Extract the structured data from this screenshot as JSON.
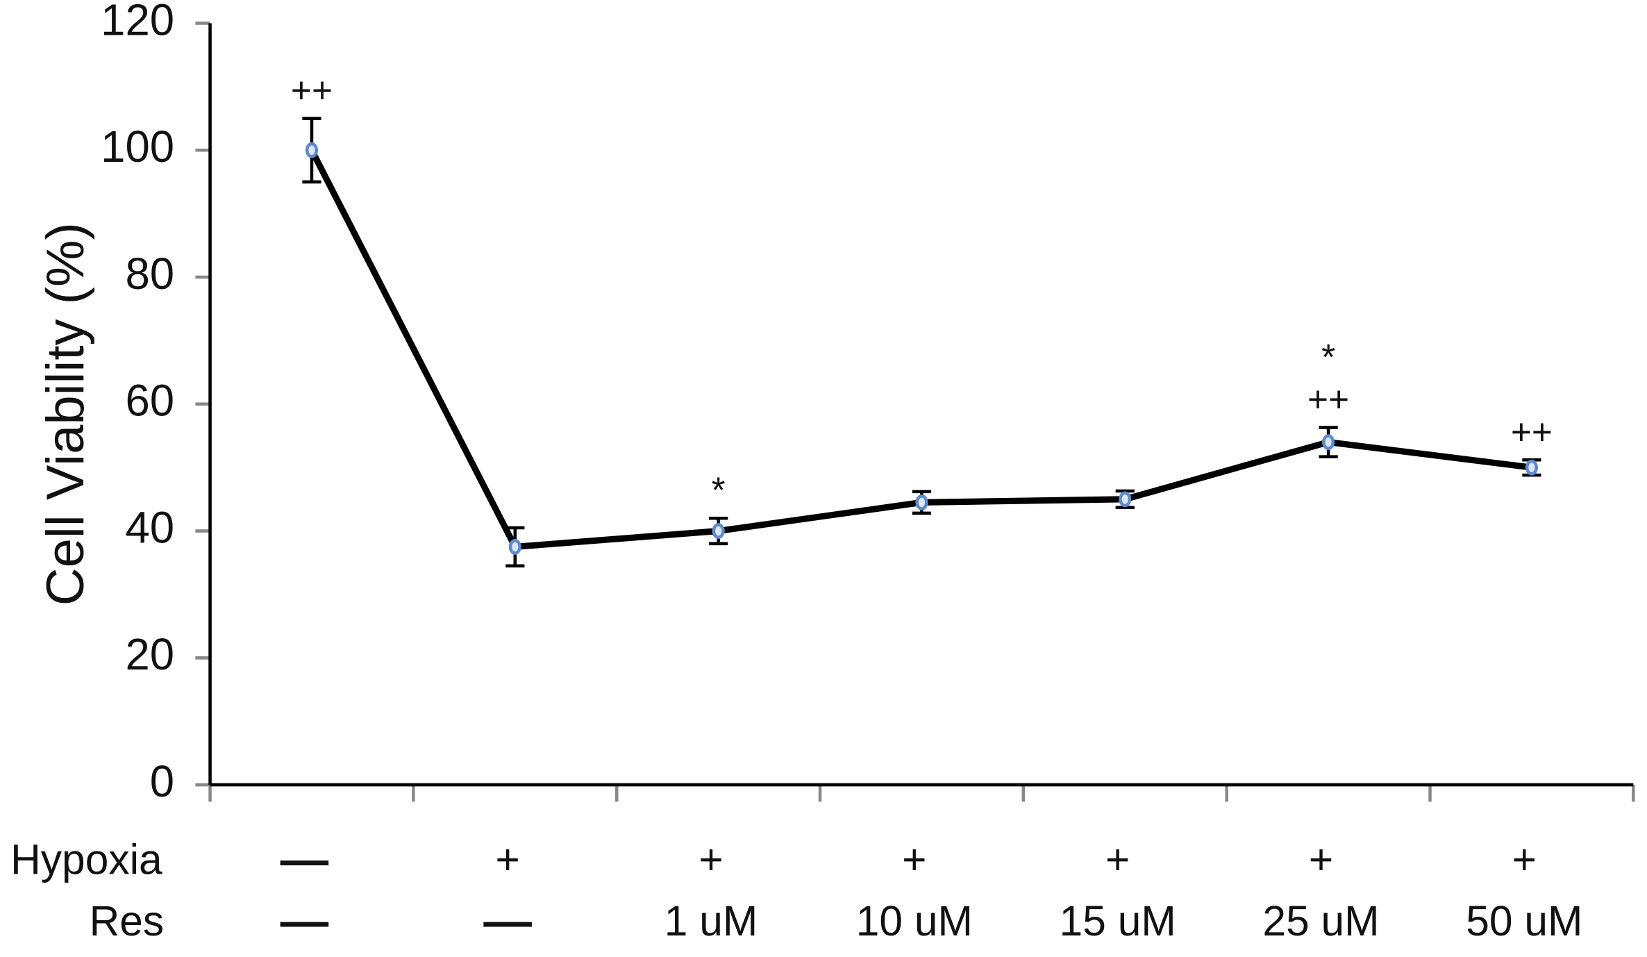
{
  "chart_data": {
    "type": "line",
    "y_label": "Cell Viability (%)",
    "category_rows": [
      {
        "name": "Hypoxia",
        "labels": [
          "—",
          "+",
          "+",
          "+",
          "+",
          "+",
          "+"
        ]
      },
      {
        "name": "Res",
        "labels": [
          "—",
          "—",
          "1 uM",
          "10 uM",
          "15 uM",
          "25 uM",
          "50 uM"
        ]
      }
    ],
    "series": [
      {
        "color": "#000000",
        "marker_color": "#5b8bd0",
        "values": [
          100,
          37.5,
          40,
          44.5,
          45,
          54,
          50
        ],
        "errors": [
          5,
          3,
          2,
          1.7,
          1.3,
          2.3,
          1.2
        ]
      }
    ],
    "annotations": [
      [
        "++"
      ],
      [],
      [
        "*"
      ],
      [],
      [],
      [
        "*",
        "++"
      ],
      [
        "++"
      ]
    ],
    "ylim": [
      0,
      120
    ],
    "yticks": [
      0,
      20,
      40,
      60,
      80,
      100,
      120
    ],
    "grid": false
  }
}
